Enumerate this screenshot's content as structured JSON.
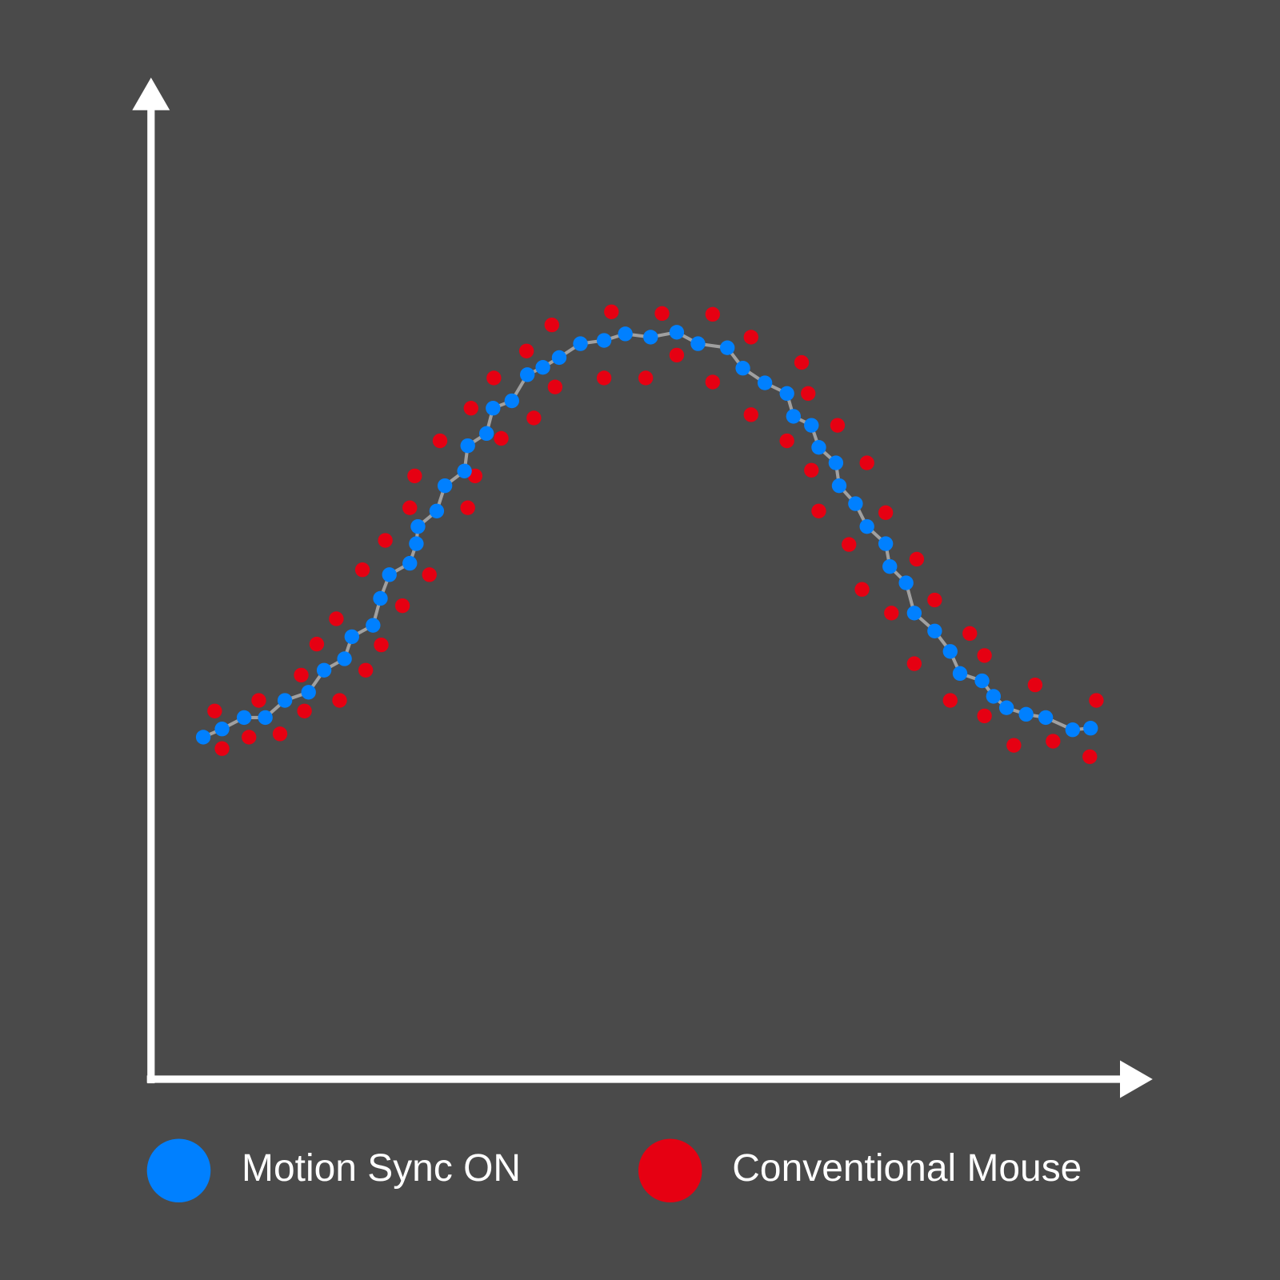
{
  "chart_data": {
    "type": "scatter",
    "xlim": [
      0,
      122.7
    ],
    "ylim": [
      0,
      122.7
    ],
    "line_color": "#a0a0a0",
    "series": [
      {
        "name": "Motion Sync ON",
        "color": "#0080ff",
        "x": [
          6.4,
          8.7,
          11.4,
          14.0,
          16.4,
          19.3,
          21.2,
          23.7,
          24.6,
          27.2,
          28.1,
          29.2,
          31.7,
          32.5,
          32.7,
          35.0,
          36.0,
          38.4,
          38.8,
          41.1,
          41.9,
          44.2,
          46.1,
          48.0,
          50.0,
          52.6,
          55.5,
          58.1,
          61.2,
          64.4,
          67.0,
          70.6,
          72.5,
          75.2,
          77.9,
          78.7,
          80.9,
          81.8,
          83.9,
          84.3,
          86.3,
          87.7,
          90.0,
          90.5,
          92.5,
          93.5,
          96.0,
          97.9,
          99.1,
          101.8,
          103.2,
          104.8,
          107.2,
          109.6,
          112.9,
          115.1
        ],
        "y": [
          41.9,
          42.9,
          44.3,
          44.3,
          46.4,
          47.4,
          50.1,
          51.5,
          54.2,
          55.6,
          58.9,
          61.8,
          63.2,
          65.6,
          67.7,
          69.6,
          72.7,
          74.5,
          77.6,
          79.1,
          82.2,
          83.1,
          86.3,
          87.2,
          88.4,
          90.1,
          90.5,
          91.3,
          90.9,
          91.5,
          90.1,
          89.6,
          87.1,
          85.3,
          84.0,
          81.2,
          80.1,
          77.4,
          75.5,
          72.7,
          70.5,
          67.7,
          65.6,
          62.8,
          60.8,
          57.1,
          54.9,
          52.4,
          49.7,
          48.8,
          46.9,
          45.5,
          44.7,
          44.3,
          42.8,
          43.0
        ]
      },
      {
        "name": "Conventional Mouse",
        "color": "#e60012",
        "x": [
          7.8,
          8.7,
          12.0,
          13.2,
          15.8,
          18.4,
          18.8,
          20.3,
          22.7,
          23.1,
          25.9,
          26.3,
          28.2,
          28.7,
          30.8,
          31.7,
          32.3,
          34.1,
          35.4,
          38.8,
          39.2,
          39.7,
          42.0,
          42.9,
          46.0,
          46.9,
          49.1,
          49.5,
          55.5,
          56.4,
          60.6,
          62.6,
          64.4,
          68.8,
          68.8,
          73.5,
          73.5,
          77.9,
          79.7,
          80.5,
          80.9,
          81.8,
          84.1,
          85.5,
          87.1,
          87.7,
          90.0,
          90.7,
          93.5,
          93.8,
          96.0,
          97.9,
          100.3,
          102.1,
          102.1,
          105.7,
          108.3,
          110.5,
          115.0,
          115.8
        ],
        "y": [
          45.1,
          40.5,
          41.9,
          46.4,
          42.3,
          49.5,
          45.1,
          53.3,
          56.4,
          46.4,
          62.4,
          50.1,
          53.2,
          66.0,
          58.0,
          70.0,
          73.9,
          61.8,
          78.2,
          70.0,
          82.2,
          73.9,
          85.9,
          78.5,
          89.2,
          81.0,
          92.4,
          84.8,
          85.9,
          94.0,
          85.9,
          93.8,
          88.7,
          93.7,
          85.4,
          90.9,
          81.4,
          78.2,
          87.8,
          84.0,
          74.6,
          69.6,
          80.1,
          65.5,
          60.0,
          75.5,
          69.4,
          57.1,
          50.9,
          63.7,
          58.7,
          46.4,
          54.6,
          51.9,
          44.5,
          40.9,
          48.3,
          41.4,
          39.5,
          46.4
        ]
      }
    ]
  }
}
